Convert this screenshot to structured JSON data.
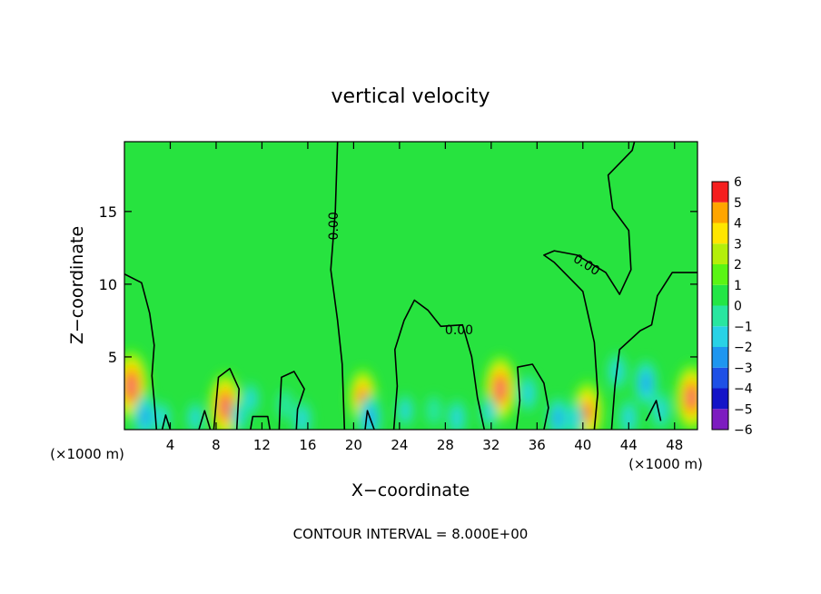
{
  "chart_data": {
    "type": "heatmap",
    "title": "vertical velocity",
    "xlabel": "X−coordinate",
    "ylabel": "Z−coordinate",
    "x_unit_left": "(×1000 m)",
    "x_unit_right": "(×1000 m)",
    "xlim": [
      0,
      50
    ],
    "ylim": [
      0,
      19.8
    ],
    "x_ticks": [
      4,
      8,
      12,
      16,
      20,
      24,
      28,
      32,
      36,
      40,
      44,
      48
    ],
    "x_tick_labels": [
      "4",
      "8",
      "12",
      "16",
      "20",
      "24",
      "28",
      "32",
      "36",
      "40",
      "44",
      "48"
    ],
    "y_ticks": [
      5,
      10,
      15
    ],
    "y_tick_labels": [
      "5",
      "10",
      "15"
    ],
    "contour_label": "0.00",
    "footer": "CONTOUR INTERVAL = 8.000E+00",
    "colorbar": {
      "levels": [
        -6,
        -5,
        -4,
        -3,
        -2,
        -1,
        0,
        1,
        2,
        3,
        4,
        5,
        6
      ],
      "labels": [
        "−6",
        "−5",
        "−4",
        "−3",
        "−2",
        "−1",
        "0",
        "1",
        "2",
        "3",
        "4",
        "5",
        "6"
      ],
      "colors": [
        "#7d1cc0",
        "#1414c8",
        "#1e50e6",
        "#1e96f0",
        "#28d2e6",
        "#28e6a0",
        "#23e646",
        "#5af514",
        "#b4ef0a",
        "#ffe600",
        "#ffa500",
        "#f51e1e",
        "#fa9696"
      ]
    },
    "background_color": "#27e33f",
    "features": [
      {
        "x": 0.6,
        "z": 3.0,
        "w": 6.0
      },
      {
        "x": 1.8,
        "z": 0.9,
        "w": -3.0
      },
      {
        "x": 3.3,
        "z": 0.8,
        "w": -1.5
      },
      {
        "x": 6.2,
        "z": 0.8,
        "w": -1.5
      },
      {
        "x": 8.8,
        "z": 1.6,
        "w": 5.5
      },
      {
        "x": 10.0,
        "z": 0.9,
        "w": -1.5
      },
      {
        "x": 11.0,
        "z": 2.1,
        "w": -1.5
      },
      {
        "x": 14.0,
        "z": 1.7,
        "w": -1.2
      },
      {
        "x": 15.5,
        "z": 0.7,
        "w": -2.0
      },
      {
        "x": 20.8,
        "z": 2.2,
        "w": 4.5
      },
      {
        "x": 21.4,
        "z": 0.8,
        "w": -3.0
      },
      {
        "x": 24.5,
        "z": 1.3,
        "w": -1.5
      },
      {
        "x": 27.0,
        "z": 1.3,
        "w": -1.2
      },
      {
        "x": 29.0,
        "z": 0.8,
        "w": -2.0
      },
      {
        "x": 32.8,
        "z": 2.8,
        "w": 5.5
      },
      {
        "x": 31.8,
        "z": 1.2,
        "w": -1.5
      },
      {
        "x": 35.2,
        "z": 2.5,
        "w": -2.0
      },
      {
        "x": 37.8,
        "z": 0.8,
        "w": -2.5
      },
      {
        "x": 40.4,
        "z": 1.2,
        "w": 5.0
      },
      {
        "x": 39.3,
        "z": 0.7,
        "w": -2.0
      },
      {
        "x": 43.0,
        "z": 4.0,
        "w": -2.0
      },
      {
        "x": 45.5,
        "z": 3.2,
        "w": -3.0
      },
      {
        "x": 46.8,
        "z": 1.3,
        "w": -2.0
      },
      {
        "x": 49.5,
        "z": 2.2,
        "w": 5.5
      },
      {
        "x": 44.0,
        "z": 0.8,
        "w": -2.0
      }
    ],
    "contour_lines": [
      [
        [
          0,
          10.7
        ],
        [
          1.5,
          10.1
        ],
        [
          2.2,
          8.0
        ],
        [
          2.6,
          5.8
        ],
        [
          2.4,
          3.7
        ],
        [
          2.6,
          2.0
        ],
        [
          2.8,
          0
        ]
      ],
      [
        [
          18.6,
          19.8
        ],
        [
          18.4,
          15.0
        ],
        [
          18.0,
          11.0
        ],
        [
          18.6,
          7.5
        ],
        [
          19.0,
          4.5
        ],
        [
          19.2,
          0
        ]
      ],
      [
        [
          23.5,
          0
        ],
        [
          23.8,
          3.0
        ],
        [
          23.6,
          5.5
        ],
        [
          24.4,
          7.5
        ],
        [
          25.3,
          8.9
        ],
        [
          26.5,
          8.2
        ],
        [
          27.6,
          7.1
        ],
        [
          29.5,
          7.2
        ],
        [
          30.3,
          5.0
        ],
        [
          30.8,
          2.2
        ],
        [
          31.4,
          0
        ]
      ],
      [
        [
          34.2,
          0
        ],
        [
          34.5,
          2.0
        ],
        [
          34.3,
          4.3
        ],
        [
          35.6,
          4.5
        ],
        [
          36.6,
          3.2
        ],
        [
          37.0,
          1.5
        ],
        [
          36.6,
          0
        ]
      ],
      [
        [
          41.0,
          0
        ],
        [
          41.3,
          2.5
        ],
        [
          41.0,
          6.0
        ],
        [
          40.0,
          9.5
        ],
        [
          37.5,
          11.5
        ],
        [
          36.6,
          12.0
        ],
        [
          37.5,
          12.3
        ],
        [
          39.5,
          12.0
        ],
        [
          42.0,
          10.8
        ],
        [
          43.2,
          9.3
        ],
        [
          44.2,
          11.0
        ],
        [
          44.0,
          13.7
        ],
        [
          42.6,
          15.2
        ],
        [
          42.2,
          17.5
        ],
        [
          44.3,
          19.2
        ],
        [
          44.5,
          19.8
        ]
      ],
      [
        [
          42.5,
          0
        ],
        [
          42.8,
          3.0
        ],
        [
          43.2,
          5.5
        ],
        [
          45.0,
          6.8
        ],
        [
          46.0,
          7.2
        ],
        [
          46.5,
          9.2
        ],
        [
          47.8,
          10.8
        ],
        [
          50,
          10.8
        ]
      ],
      [
        [
          45.5,
          0.6
        ],
        [
          46.4,
          2.0
        ],
        [
          46.8,
          0.6
        ]
      ],
      [
        [
          6.5,
          0
        ],
        [
          7.0,
          1.3
        ],
        [
          7.5,
          0
        ]
      ],
      [
        [
          7.8,
          0
        ],
        [
          8.2,
          3.6
        ],
        [
          9.2,
          4.2
        ],
        [
          10.0,
          2.8
        ],
        [
          9.8,
          0
        ]
      ],
      [
        [
          13.5,
          0
        ],
        [
          13.6,
          2.0
        ],
        [
          13.7,
          3.6
        ],
        [
          14.8,
          4.0
        ],
        [
          15.7,
          2.8
        ],
        [
          15.1,
          1.4
        ],
        [
          15.0,
          0
        ]
      ],
      [
        [
          3.3,
          0
        ],
        [
          3.6,
          1.0
        ],
        [
          4.0,
          0
        ]
      ],
      [
        [
          11.0,
          0
        ],
        [
          11.2,
          0.9
        ],
        [
          12.5,
          0.9
        ],
        [
          12.7,
          0
        ]
      ],
      [
        [
          21.0,
          0
        ],
        [
          21.2,
          1.3
        ],
        [
          21.8,
          0
        ]
      ]
    ],
    "contour_labels_at": [
      {
        "x": 18.3,
        "z": 14.0,
        "angle": -90
      },
      {
        "x": 29.2,
        "z": 6.8,
        "angle": 0
      },
      {
        "x": 40.3,
        "z": 11.3,
        "angle": 32
      }
    ]
  }
}
